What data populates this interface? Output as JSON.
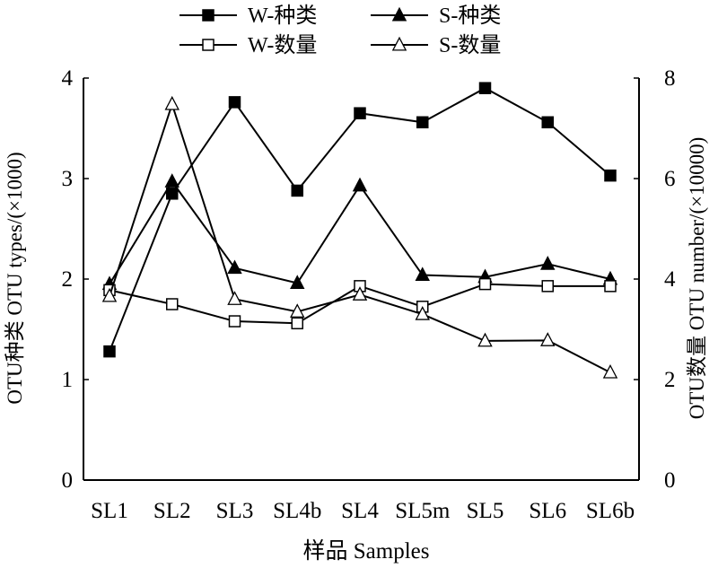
{
  "chart_data": {
    "type": "line",
    "categories": [
      "SL1",
      "SL2",
      "SL3",
      "SL4b",
      "SL4",
      "SL5m",
      "SL5",
      "SL6",
      "SL6b"
    ],
    "xlabel": "样品 Samples",
    "ylabel_left": "OTU种类 OTU types/(×1000)",
    "ylabel_right": "OTU数量 OTU number/(×10000)",
    "ylim_left": [
      0,
      4
    ],
    "ylim_right": [
      0,
      8
    ],
    "yticks_left": [
      "0",
      "1",
      "2",
      "3",
      "4"
    ],
    "yticks_right": [
      "0",
      "2",
      "4",
      "6",
      "8"
    ],
    "grid": false,
    "legend_position": "top",
    "series": [
      {
        "name": "W-种类",
        "axis": "left",
        "marker": "square-filled",
        "values": [
          1.28,
          2.85,
          3.76,
          2.88,
          3.65,
          3.56,
          3.9,
          3.56,
          3.03
        ]
      },
      {
        "name": "S-种类",
        "axis": "left",
        "marker": "triangle-filled",
        "values": [
          1.95,
          2.97,
          2.11,
          1.96,
          2.93,
          2.04,
          2.02,
          2.15,
          2.0
        ]
      },
      {
        "name": "W-数量",
        "axis": "right",
        "marker": "square-open",
        "values": [
          3.78,
          3.5,
          3.16,
          3.12,
          3.86,
          3.45,
          3.9,
          3.86,
          3.86
        ]
      },
      {
        "name": "S-数量",
        "axis": "right",
        "marker": "triangle-open",
        "values": [
          3.66,
          7.48,
          3.6,
          3.35,
          3.69,
          3.3,
          2.77,
          2.78,
          2.14
        ]
      }
    ]
  }
}
